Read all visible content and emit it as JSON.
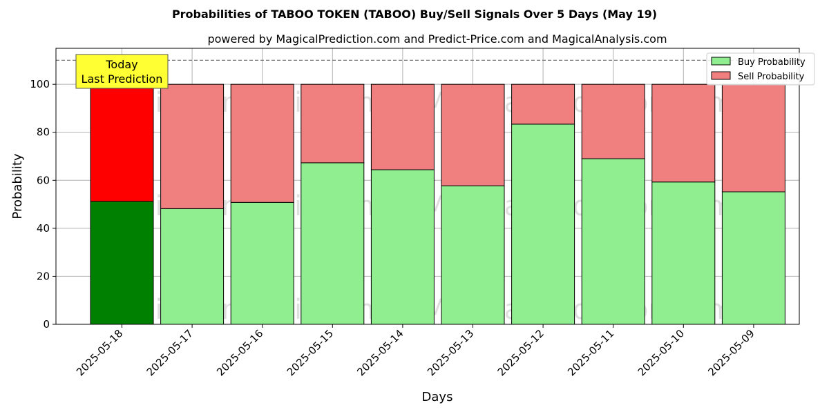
{
  "chart_data": {
    "type": "bar",
    "stacked": true,
    "title": "Probabilities of TABOO TOKEN (TABOO) Buy/Sell Signals Over 5 Days (May 19)",
    "subtitle": "powered by MagicalPrediction.com and Predict-Price.com and MagicalAnalysis.com",
    "xlabel": "Days",
    "ylabel": "Probability",
    "ylim": [
      0,
      115
    ],
    "yticks": [
      0,
      20,
      40,
      60,
      80,
      100
    ],
    "grid": true,
    "legend_position": "top-right",
    "reference_line": 110,
    "categories": [
      "2025-05-18",
      "2025-05-17",
      "2025-05-16",
      "2025-05-15",
      "2025-05-14",
      "2025-05-13",
      "2025-05-12",
      "2025-05-11",
      "2025-05-10",
      "2025-05-09"
    ],
    "series": [
      {
        "name": "Buy Probability",
        "values": [
          51.2,
          48.2,
          50.8,
          67.3,
          64.4,
          57.7,
          83.4,
          69.0,
          59.3,
          55.2
        ],
        "color": "#90EE90",
        "highlight_color": "#008000"
      },
      {
        "name": "Sell Probability",
        "values": [
          48.8,
          51.8,
          49.2,
          32.7,
          35.6,
          42.3,
          16.6,
          31.0,
          40.7,
          44.8
        ],
        "color": "#F08080",
        "highlight_color": "#FF0000"
      }
    ],
    "annotation": {
      "lines": [
        "Today",
        "Last Prediction"
      ],
      "background": "#FFFF33"
    },
    "watermarks": [
      "MagicalAnalysis.com",
      "MagicalPrediction.com"
    ]
  }
}
